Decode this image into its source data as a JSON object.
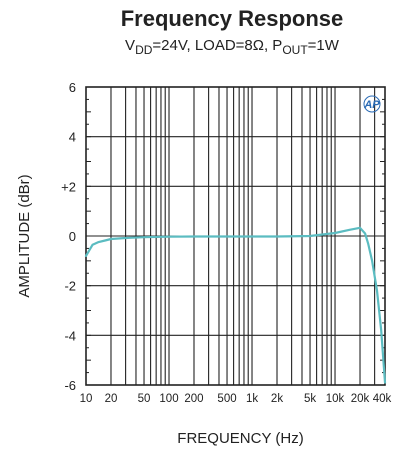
{
  "chart_data": {
    "type": "line",
    "title": "Frequency Response",
    "subtitle": {
      "parts": [
        {
          "text": "V",
          "sub": false
        },
        {
          "text": "DD",
          "sub": true
        },
        {
          "text": "=24V, LOAD=8Ω, P",
          "sub": false
        },
        {
          "text": "OUT",
          "sub": true
        },
        {
          "text": "=1W",
          "sub": false
        }
      ]
    },
    "xlabel": "FREQUENCY (Hz)",
    "ylabel": "AMPLITUDE (dBr)",
    "x_scale": "log",
    "xlim": [
      10,
      40000
    ],
    "ylim": [
      -6,
      6
    ],
    "grid": true,
    "xticks": [
      {
        "value": 10,
        "label": "10"
      },
      {
        "value": 20,
        "label": "20"
      },
      {
        "value": 50,
        "label": "50"
      },
      {
        "value": 100,
        "label": "100"
      },
      {
        "value": 200,
        "label": "200"
      },
      {
        "value": 500,
        "label": "500"
      },
      {
        "value": 1000,
        "label": "1k"
      },
      {
        "value": 2000,
        "label": "2k"
      },
      {
        "value": 5000,
        "label": "5k"
      },
      {
        "value": 10000,
        "label": "10k"
      },
      {
        "value": 20000,
        "label": "20k"
      },
      {
        "value": 40000,
        "label": "40k"
      }
    ],
    "yticks": [
      {
        "value": 6,
        "label": "6"
      },
      {
        "value": 4,
        "label": "4"
      },
      {
        "value": 2,
        "label": "+2"
      },
      {
        "value": 0,
        "label": "0"
      },
      {
        "value": -2,
        "label": "-2"
      },
      {
        "value": -4,
        "label": "-4"
      },
      {
        "value": -6,
        "label": "-6"
      }
    ],
    "series": [
      {
        "color": "#5bbcc1",
        "x": [
          10,
          12,
          14,
          17,
          20,
          30,
          50,
          100,
          200,
          500,
          1000,
          2000,
          5000,
          10000,
          15000,
          20000,
          23000,
          25000,
          28000,
          32000,
          36000,
          40000
        ],
        "values": [
          -0.8,
          -0.35,
          -0.25,
          -0.18,
          -0.12,
          -0.08,
          -0.05,
          -0.03,
          -0.02,
          -0.02,
          -0.02,
          -0.02,
          0.0,
          0.12,
          0.25,
          0.33,
          0.1,
          -0.3,
          -1.0,
          -2.2,
          -3.8,
          -5.9
        ]
      }
    ]
  },
  "logo": {
    "text": "AP"
  },
  "colors": {
    "line": "#5bbcc1",
    "axis": "#222222",
    "grid": "#222222",
    "logo": "#2a6bb5"
  }
}
